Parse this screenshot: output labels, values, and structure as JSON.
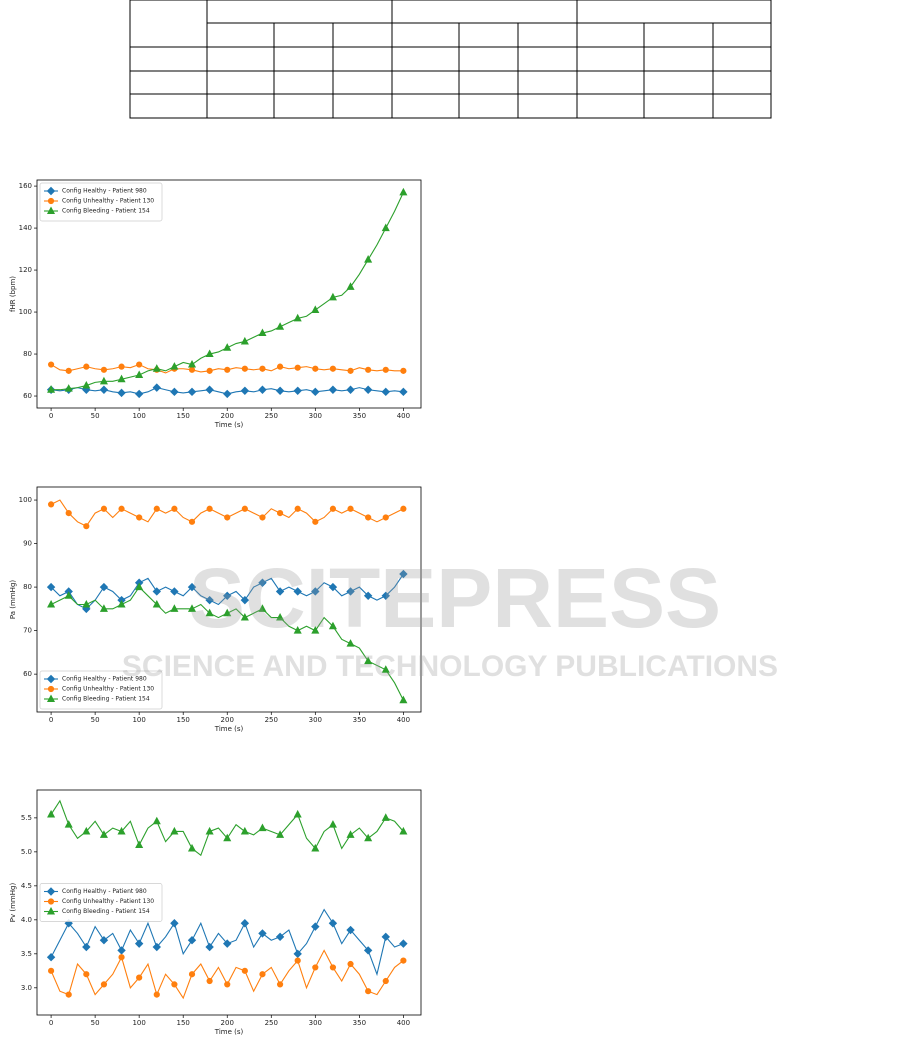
{
  "chart_data": [
    {
      "type": "line",
      "xlabel": "Time (s)",
      "ylabel": "fHR (bpm)",
      "legend": "upper left",
      "xlim": [
        -16,
        420
      ],
      "ylim": [
        54.3,
        162.9
      ],
      "xticks": [
        0,
        50,
        100,
        150,
        200,
        250,
        300,
        350,
        400
      ],
      "yticks": [
        60,
        80,
        100,
        120,
        140,
        160
      ],
      "x": [
        0,
        10,
        20,
        30,
        40,
        50,
        60,
        70,
        80,
        90,
        100,
        110,
        120,
        130,
        140,
        150,
        160,
        170,
        180,
        190,
        200,
        210,
        220,
        230,
        240,
        250,
        260,
        270,
        280,
        290,
        300,
        310,
        320,
        330,
        340,
        350,
        360,
        370,
        380,
        390,
        400
      ],
      "series": [
        {
          "name": "Config Healthy - Patient 980",
          "color": "#1f77b4",
          "marker": "diamond",
          "values": [
            63,
            62.5,
            63,
            64,
            63,
            62.5,
            63,
            62,
            61.5,
            62,
            61,
            62,
            64,
            63,
            62,
            61.5,
            62,
            62.5,
            63,
            62,
            61,
            62,
            62.5,
            62,
            63,
            63.5,
            62.5,
            62,
            62.5,
            63,
            62,
            62.5,
            63,
            62.5,
            63,
            64,
            63,
            62.5,
            62,
            62.5,
            62
          ]
        },
        {
          "name": "Config Unhealthy - Patient 130",
          "color": "#ff7f0e",
          "marker": "circle",
          "values": [
            75,
            72.5,
            72,
            73,
            74,
            73,
            72.5,
            73,
            74,
            73.5,
            75,
            73,
            72.5,
            71,
            73,
            73,
            72.5,
            71.5,
            72,
            73,
            72.5,
            73.5,
            73,
            72.5,
            73,
            72,
            74,
            73,
            73.5,
            74,
            73,
            72.5,
            73,
            72.5,
            72,
            73.5,
            72.5,
            72,
            72.5,
            72,
            72
          ]
        },
        {
          "name": "Config Bleeding - Patient 154",
          "color": "#2ca02c",
          "marker": "triangle",
          "values": [
            63,
            63,
            63.5,
            64,
            65,
            66.5,
            67,
            67,
            68,
            69,
            70,
            72,
            73,
            72,
            74,
            76,
            75,
            78,
            80,
            81,
            83,
            85,
            86,
            88,
            90,
            91,
            93,
            95,
            97,
            98,
            101,
            104,
            107,
            108,
            112,
            118,
            125,
            132,
            140,
            148,
            157
          ]
        }
      ]
    },
    {
      "type": "line",
      "xlabel": "Time (s)",
      "ylabel": "Pa (mmHg)",
      "legend": "lower left",
      "xlim": [
        -16,
        420
      ],
      "ylim": [
        51.3,
        103
      ],
      "xticks": [
        0,
        50,
        100,
        150,
        200,
        250,
        300,
        350,
        400
      ],
      "yticks": [
        60,
        70,
        80,
        90,
        100
      ],
      "x": [
        0,
        10,
        20,
        30,
        40,
        50,
        60,
        70,
        80,
        90,
        100,
        110,
        120,
        130,
        140,
        150,
        160,
        170,
        180,
        190,
        200,
        210,
        220,
        230,
        240,
        250,
        260,
        270,
        280,
        290,
        300,
        310,
        320,
        330,
        340,
        350,
        360,
        370,
        380,
        390,
        400
      ],
      "series": [
        {
          "name": "Config Healthy - Patient 980",
          "color": "#1f77b4",
          "marker": "diamond",
          "values": [
            80,
            78,
            79,
            76,
            75,
            77,
            80,
            79,
            77,
            78,
            81,
            82,
            79,
            80,
            79,
            78,
            80,
            78,
            77,
            76,
            78,
            79,
            77,
            80,
            81,
            82,
            79,
            80,
            79,
            78,
            79,
            81,
            80,
            78,
            79,
            80,
            78,
            77,
            78,
            80,
            83
          ]
        },
        {
          "name": "Config Unhealthy - Patient 130",
          "color": "#ff7f0e",
          "marker": "circle",
          "values": [
            99,
            100,
            97,
            95,
            94,
            97,
            98,
            96,
            98,
            97,
            96,
            95,
            98,
            97,
            98,
            96,
            95,
            97,
            98,
            97,
            96,
            97,
            98,
            97,
            96,
            98,
            97,
            96,
            98,
            97,
            95,
            96,
            98,
            97,
            98,
            97,
            96,
            95,
            96,
            97,
            98
          ]
        },
        {
          "name": "Config Bleeding - Patient 154",
          "color": "#2ca02c",
          "marker": "triangle",
          "values": [
            76,
            77,
            78,
            76,
            76,
            77,
            75,
            75,
            76,
            77,
            80,
            78,
            76,
            74,
            75,
            75,
            75,
            76,
            74,
            73,
            74,
            75,
            73,
            74,
            75,
            73,
            73,
            71,
            70,
            71,
            70,
            73,
            71,
            68,
            67,
            66,
            63,
            62,
            61,
            58,
            54
          ]
        }
      ]
    },
    {
      "type": "line",
      "xlabel": "Time (s)",
      "ylabel": "Pv (mmHg)",
      "legend": "center left",
      "xlim": [
        -16,
        420
      ],
      "ylim": [
        2.6,
        5.91
      ],
      "xticks": [
        0,
        50,
        100,
        150,
        200,
        250,
        300,
        350,
        400
      ],
      "yticks": [
        {
          "value": 3,
          "label": "3.0"
        },
        3.5,
        {
          "value": 4,
          "label": "4.0"
        },
        4.5,
        {
          "value": 5,
          "label": "5.0"
        },
        5.5
      ],
      "x": [
        0,
        10,
        20,
        30,
        40,
        50,
        60,
        70,
        80,
        90,
        100,
        110,
        120,
        130,
        140,
        150,
        160,
        170,
        180,
        190,
        200,
        210,
        220,
        230,
        240,
        250,
        260,
        270,
        280,
        290,
        300,
        310,
        320,
        330,
        340,
        350,
        360,
        370,
        380,
        390,
        400
      ],
      "series": [
        {
          "name": "Config Healthy - Patient 980",
          "color": "#1f77b4",
          "marker": "diamond",
          "values": [
            3.45,
            3.7,
            3.95,
            3.8,
            3.6,
            3.9,
            3.7,
            3.8,
            3.55,
            3.85,
            3.65,
            3.95,
            3.6,
            3.75,
            3.95,
            3.5,
            3.7,
            3.95,
            3.6,
            3.8,
            3.65,
            3.7,
            3.95,
            3.6,
            3.8,
            3.7,
            3.75,
            3.85,
            3.5,
            3.65,
            3.9,
            4.15,
            3.95,
            3.65,
            3.85,
            3.7,
            3.55,
            3.2,
            3.75,
            3.6,
            3.65
          ]
        },
        {
          "name": "Config Unhealthy - Patient 130",
          "color": "#ff7f0e",
          "marker": "circle",
          "values": [
            3.25,
            2.95,
            2.9,
            3.35,
            3.2,
            2.9,
            3.05,
            3.2,
            3.45,
            3,
            3.15,
            3.35,
            2.9,
            3.2,
            3.05,
            2.85,
            3.2,
            3.35,
            3.1,
            3.3,
            3.05,
            3.3,
            3.25,
            2.95,
            3.2,
            3.3,
            3.05,
            3.25,
            3.4,
            3,
            3.3,
            3.55,
            3.3,
            3.1,
            3.35,
            3.2,
            2.95,
            2.9,
            3.1,
            3.3,
            3.4
          ]
        },
        {
          "name": "Config Bleeding - Patient 154",
          "color": "#2ca02c",
          "marker": "triangle",
          "values": [
            5.55,
            5.75,
            5.4,
            5.2,
            5.3,
            5.45,
            5.25,
            5.35,
            5.3,
            5.45,
            5.1,
            5.35,
            5.45,
            5.15,
            5.3,
            5.3,
            5.05,
            4.95,
            5.3,
            5.35,
            5.2,
            5.4,
            5.3,
            5.25,
            5.35,
            5.3,
            5.25,
            5.4,
            5.55,
            5.2,
            5.05,
            5.3,
            5.4,
            5.05,
            5.25,
            5.35,
            5.2,
            5.3,
            5.5,
            5.45,
            5.3
          ]
        }
      ]
    }
  ],
  "watermark": {
    "title": "SCITEPRESS",
    "subtitle": "SCIENCE AND TECHNOLOGY PUBLICATIONS"
  }
}
